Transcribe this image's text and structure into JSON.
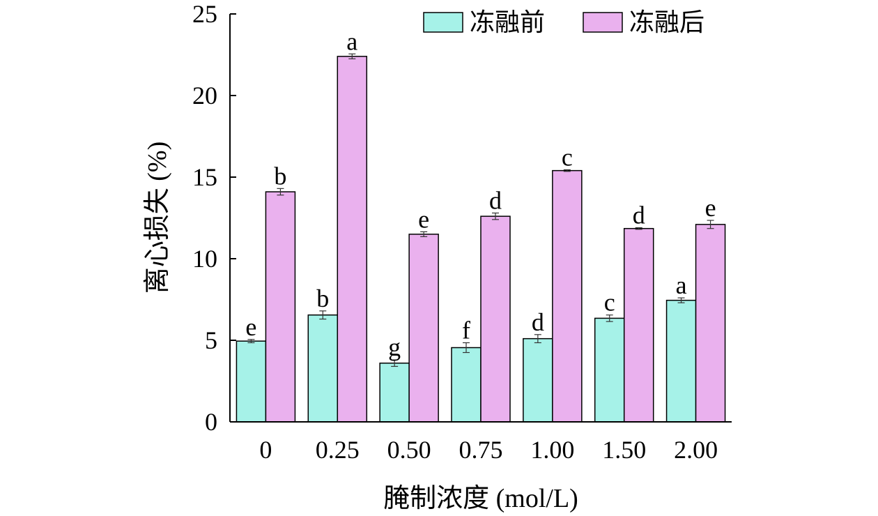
{
  "chart_data": {
    "type": "bar",
    "xlabel": "腌制浓度 (mol/L)",
    "ylabel": "离心损失 (%)",
    "ylim": [
      0,
      25
    ],
    "yticks": [
      "0",
      "5",
      "10",
      "15",
      "20",
      "25"
    ],
    "grid": false,
    "legend_position": "top-right",
    "categories": [
      "0",
      "0.25",
      "0.50",
      "0.75",
      "1.00",
      "1.50",
      "2.00"
    ],
    "series": [
      {
        "name": "冻融前",
        "color": "#a6f2e8",
        "values": [
          4.95,
          6.55,
          3.6,
          4.55,
          5.1,
          6.35,
          7.45
        ],
        "errors": [
          0.1,
          0.25,
          0.2,
          0.3,
          0.25,
          0.2,
          0.15
        ],
        "labels": [
          "e",
          "b",
          "g",
          "f",
          "d",
          "c",
          "a"
        ]
      },
      {
        "name": "冻融后",
        "color": "#eab1ee",
        "values": [
          14.1,
          22.4,
          11.5,
          12.6,
          15.4,
          11.85,
          12.1
        ],
        "errors": [
          0.2,
          0.15,
          0.15,
          0.2,
          0.05,
          0.05,
          0.25
        ],
        "labels": [
          "b",
          "a",
          "e",
          "d",
          "c",
          "d",
          "e"
        ]
      }
    ]
  }
}
